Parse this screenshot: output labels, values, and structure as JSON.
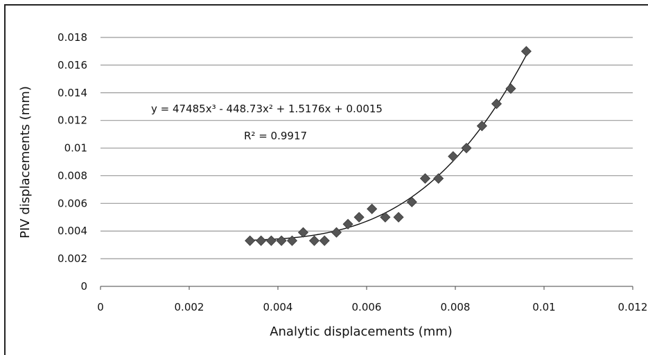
{
  "chart_data": {
    "type": "scatter",
    "xlabel": "Analytic displacements (mm)",
    "ylabel": "PIV displacements (mm)",
    "xlim": [
      0,
      0.012
    ],
    "ylim": [
      0,
      0.018
    ],
    "x_ticks": [
      "0",
      "0.002",
      "0.004",
      "0.006",
      "0.008",
      "0.01",
      "0.012"
    ],
    "y_ticks": [
      "0",
      "0.002",
      "0.004",
      "0.006",
      "0.008",
      "0.01",
      "0.012",
      "0.014",
      "0.016",
      "0.018"
    ],
    "grid": "horizontal",
    "marker": "diamond",
    "marker_color": "#555555",
    "series": [
      {
        "x": [
          0.00337,
          0.00362,
          0.00385,
          0.00408,
          0.00432,
          0.00457,
          0.00482,
          0.00505,
          0.00532,
          0.00558,
          0.00583,
          0.00612,
          0.00642,
          0.00672,
          0.00702,
          0.00732,
          0.00762,
          0.00795,
          0.00825,
          0.0086,
          0.00893,
          0.00925,
          0.0096
        ],
        "y": [
          0.0033,
          0.0033,
          0.0033,
          0.0033,
          0.0033,
          0.0039,
          0.0033,
          0.0033,
          0.0039,
          0.0045,
          0.005,
          0.0056,
          0.005,
          0.005,
          0.0061,
          0.0078,
          0.0078,
          0.0094,
          0.01,
          0.0116,
          0.0132,
          0.0143,
          0.017
        ]
      }
    ],
    "trendline": {
      "type": "polynomial",
      "coefficients": [
        47485,
        -448.73,
        1.5176,
        0.0015
      ],
      "x_range": [
        0.0034,
        0.0096
      ],
      "equation_text": "y = 47485x³ - 448.73x² + 1.5176x + 0.0015",
      "r2_text": "R² = 0.9917"
    }
  }
}
